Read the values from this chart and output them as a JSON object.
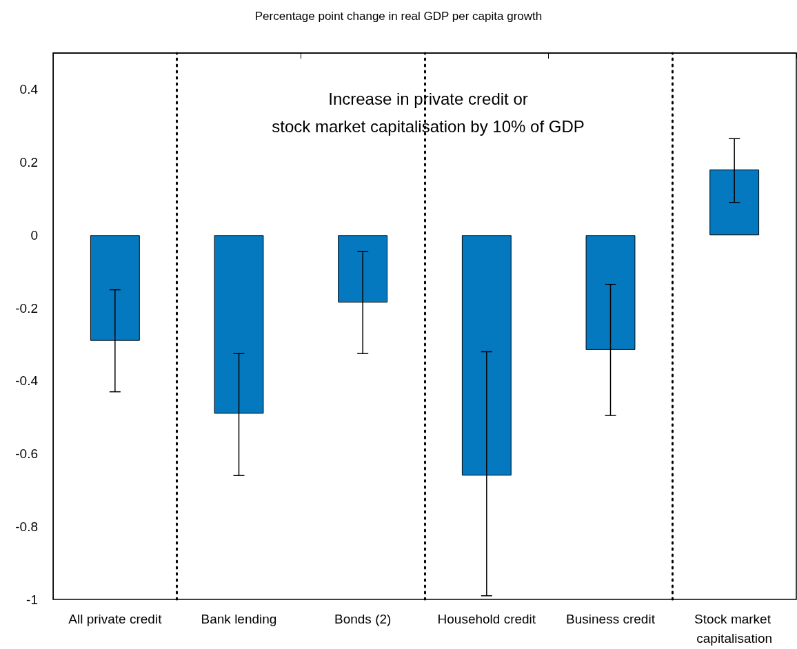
{
  "chart_data": {
    "type": "bar",
    "title": "Increase in private credit or\nstock market capitalisation by 10% of GDP",
    "ylabel": "Percentage point change in real GDP per capita growth",
    "categories": [
      "All private credit",
      "Bank lending",
      "Bonds (2)",
      "Household credit",
      "Business credit",
      "Stock market capitalisation"
    ],
    "values": [
      -0.29,
      -0.49,
      -0.185,
      -0.66,
      -0.315,
      0.18
    ],
    "errors": [
      [
        -0.43,
        -0.15
      ],
      [
        -0.66,
        -0.325
      ],
      [
        -0.325,
        -0.045
      ],
      [
        -0.99,
        -0.32
      ],
      [
        -0.495,
        -0.135
      ],
      [
        0.09,
        0.265
      ]
    ],
    "color": "#0579c0",
    "ylim": [
      -1,
      0.5
    ],
    "yticks": [
      -1,
      -0.8,
      -0.6,
      -0.4,
      -0.2,
      0,
      0.2,
      0.4
    ],
    "grid": false
  }
}
